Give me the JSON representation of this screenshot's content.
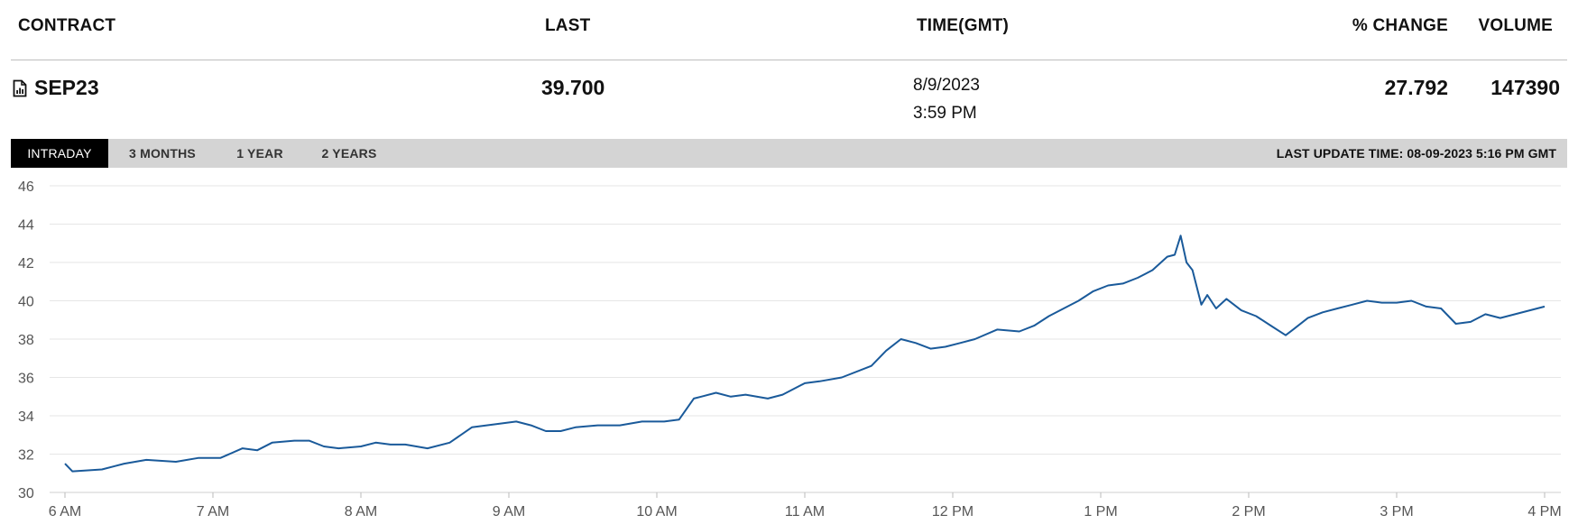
{
  "header": {
    "contract": "CONTRACT",
    "last": "LAST",
    "time": "TIME(GMT)",
    "pct_change": "% CHANGE",
    "volume": "VOLUME"
  },
  "row": {
    "contract": "SEP23",
    "last": "39.700",
    "date": "8/9/2023",
    "time": "3:59 PM",
    "pct_change": "27.792",
    "volume": "147390"
  },
  "icons": {
    "contract": "chart-file-icon"
  },
  "tabs": [
    {
      "label": "INTRADAY",
      "active": true
    },
    {
      "label": "3 MONTHS",
      "active": false
    },
    {
      "label": "1 YEAR",
      "active": false
    },
    {
      "label": "2 YEARS",
      "active": false
    }
  ],
  "last_update": "LAST UPDATE TIME: 08-09-2023 5:16 PM GMT",
  "colors": {
    "line": "#1a5a9a",
    "tabbar": "#d4d4d4",
    "active_tab": "#000000"
  },
  "chart_data": {
    "type": "line",
    "grid": true,
    "ylim": [
      30,
      46
    ],
    "yticks": [
      "30",
      "32",
      "34",
      "36",
      "38",
      "40",
      "42",
      "44",
      "46"
    ],
    "xlim": [
      6,
      16
    ],
    "xticks": [
      "6 AM",
      "7 AM",
      "8 AM",
      "9 AM",
      "10 AM",
      "11 AM",
      "12 PM",
      "1 PM",
      "2 PM",
      "3 PM",
      "4 PM"
    ],
    "series": [
      {
        "x": [
          6.0,
          6.05,
          6.25,
          6.4,
          6.55,
          6.75,
          6.9,
          7.05,
          7.2,
          7.3,
          7.4,
          7.55,
          7.65,
          7.75,
          7.85,
          8.0,
          8.1,
          8.2,
          8.3,
          8.45,
          8.6,
          8.75,
          8.95,
          9.05,
          9.15,
          9.25,
          9.35,
          9.45,
          9.6,
          9.75,
          9.9,
          10.05,
          10.15,
          10.25,
          10.3,
          10.4,
          10.5,
          10.6,
          10.75,
          10.85,
          11.0,
          11.1,
          11.25,
          11.45,
          11.55,
          11.65,
          11.75,
          11.85,
          11.95,
          12.05,
          12.15,
          12.3,
          12.45,
          12.55,
          12.65,
          12.75,
          12.85,
          12.95,
          13.05,
          13.15,
          13.25,
          13.35,
          13.45,
          13.5,
          13.54,
          13.58,
          13.62,
          13.68,
          13.72,
          13.78,
          13.85,
          13.95,
          14.05,
          14.15,
          14.25,
          14.3,
          14.4,
          14.5,
          14.6,
          14.7,
          14.8,
          14.9,
          15.0,
          15.1,
          15.2,
          15.3,
          15.4,
          15.5,
          15.6,
          15.7,
          15.8,
          15.9,
          16.0
        ],
        "y": [
          31.5,
          31.1,
          31.2,
          31.5,
          31.7,
          31.6,
          31.8,
          31.8,
          32.3,
          32.2,
          32.6,
          32.7,
          32.7,
          32.4,
          32.3,
          32.4,
          32.6,
          32.5,
          32.5,
          32.3,
          32.6,
          33.4,
          33.6,
          33.7,
          33.5,
          33.2,
          33.2,
          33.4,
          33.5,
          33.5,
          33.7,
          33.7,
          33.8,
          34.9,
          35.0,
          35.2,
          35.0,
          35.1,
          34.9,
          35.1,
          35.7,
          35.8,
          36.0,
          36.6,
          37.4,
          38.0,
          37.8,
          37.5,
          37.6,
          37.8,
          38.0,
          38.5,
          38.4,
          38.7,
          39.2,
          39.6,
          40.0,
          40.5,
          40.8,
          40.9,
          41.2,
          41.6,
          42.3,
          42.4,
          43.4,
          42.0,
          41.6,
          39.8,
          40.3,
          39.6,
          40.1,
          39.5,
          39.2,
          38.7,
          38.2,
          38.5,
          39.1,
          39.4,
          39.6,
          39.8,
          40.0,
          39.9,
          39.9,
          40.0,
          39.7,
          39.6,
          38.8,
          38.9,
          39.3,
          39.1,
          39.3,
          39.5,
          39.7
        ]
      }
    ]
  }
}
